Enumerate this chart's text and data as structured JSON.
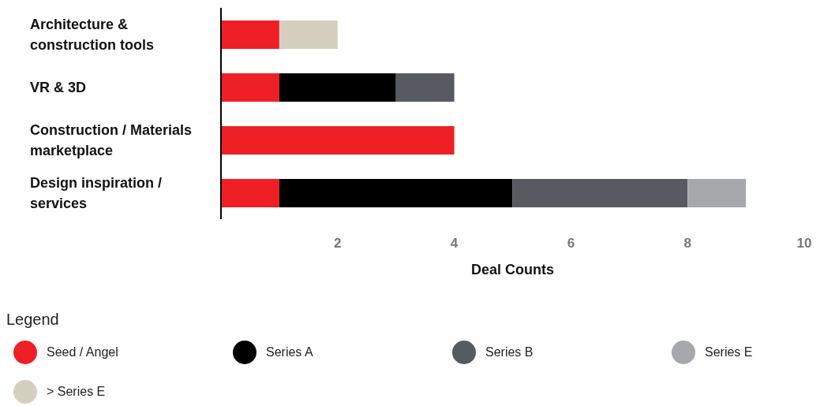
{
  "chart_data": {
    "type": "bar",
    "orientation": "horizontal",
    "stacked": true,
    "categories": [
      "Architecture & construction tools",
      "VR & 3D",
      "Construction / Materials marketplace",
      "Design inspiration / services"
    ],
    "series": [
      {
        "name": "Seed / Angel",
        "color": "#ee2026",
        "values": [
          1,
          1,
          4,
          1
        ]
      },
      {
        "name": "Series A",
        "color": "#000000",
        "values": [
          null,
          2,
          null,
          4
        ]
      },
      {
        "name": "Series B",
        "color": "#575a61",
        "values": [
          null,
          1,
          null,
          3
        ]
      },
      {
        "name": "Series E",
        "color": "#a6a8ab",
        "values": [
          null,
          null,
          null,
          1
        ]
      },
      {
        "name": "> Series E",
        "color": "#d5cfbf",
        "values": [
          1,
          null,
          null,
          null
        ]
      }
    ],
    "xlabel": "Deal Counts",
    "xlim": [
      0,
      10
    ],
    "xticks": [
      2,
      4,
      6,
      8,
      10
    ],
    "grid": false,
    "legend": "bottom",
    "legend_title": "Legend"
  }
}
